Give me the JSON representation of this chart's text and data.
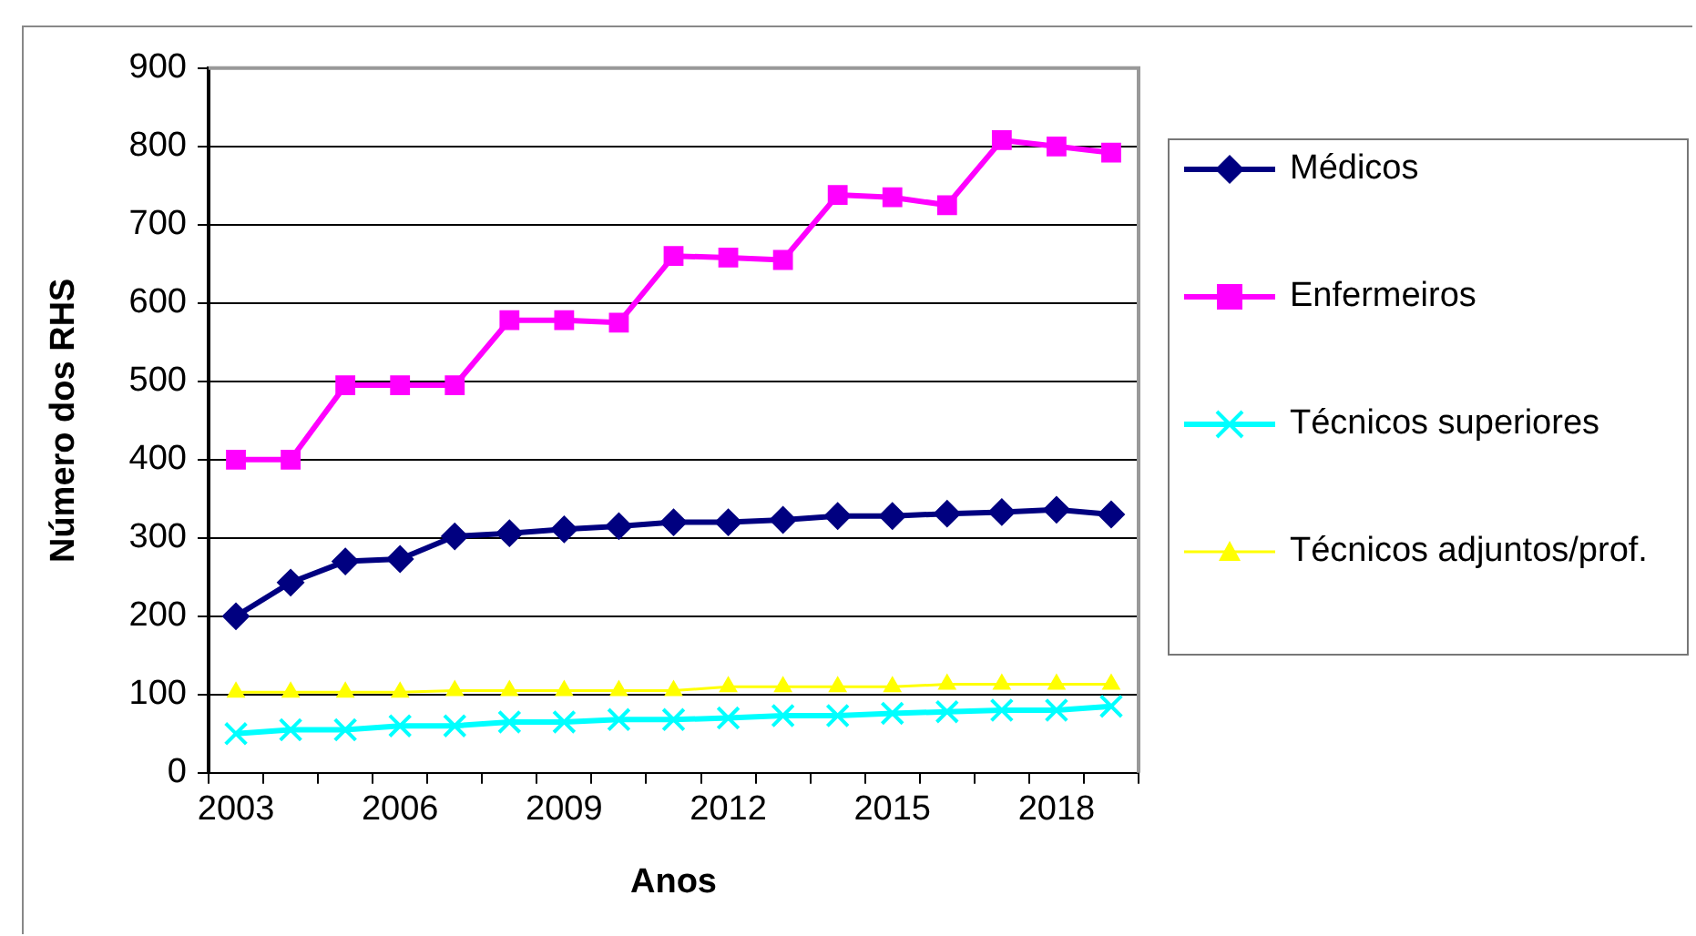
{
  "chart_data": {
    "type": "line",
    "xlabel": "Anos",
    "ylabel": "Número dos RHS",
    "categories": [
      "2003",
      null,
      null,
      "2006",
      null,
      null,
      "2009",
      null,
      null,
      "2012",
      null,
      null,
      "2015",
      null,
      null,
      "2018",
      null
    ],
    "ylim": [
      0,
      900
    ],
    "yticks": [
      0,
      100,
      200,
      300,
      400,
      500,
      600,
      700,
      800,
      900
    ],
    "grid": "y",
    "legend": "right",
    "series": [
      {
        "name": "Médicos",
        "color": "#000080",
        "marker": "diamond",
        "values": [
          200,
          243,
          270,
          273,
          302,
          306,
          311,
          315,
          320,
          320,
          323,
          328,
          328,
          331,
          333,
          336,
          330
        ]
      },
      {
        "name": "Enfermeiros",
        "color": "#ff00ff",
        "marker": "square",
        "values": [
          400,
          400,
          495,
          495,
          495,
          578,
          578,
          575,
          660,
          658,
          655,
          738,
          735,
          725,
          808,
          800,
          792
        ]
      },
      {
        "name": "Técnicos superiores",
        "color": "#00ffff",
        "marker": "cross",
        "values": [
          50,
          55,
          55,
          60,
          60,
          65,
          65,
          68,
          68,
          70,
          73,
          73,
          76,
          78,
          80,
          80,
          85
        ]
      },
      {
        "name": "Técnicos adjuntos/prof.",
        "color": "#ffff00",
        "marker": "triangle",
        "values": [
          103,
          103,
          103,
          103,
          105,
          105,
          105,
          105,
          105,
          110,
          110,
          110,
          110,
          113,
          113,
          113,
          113
        ]
      }
    ]
  }
}
